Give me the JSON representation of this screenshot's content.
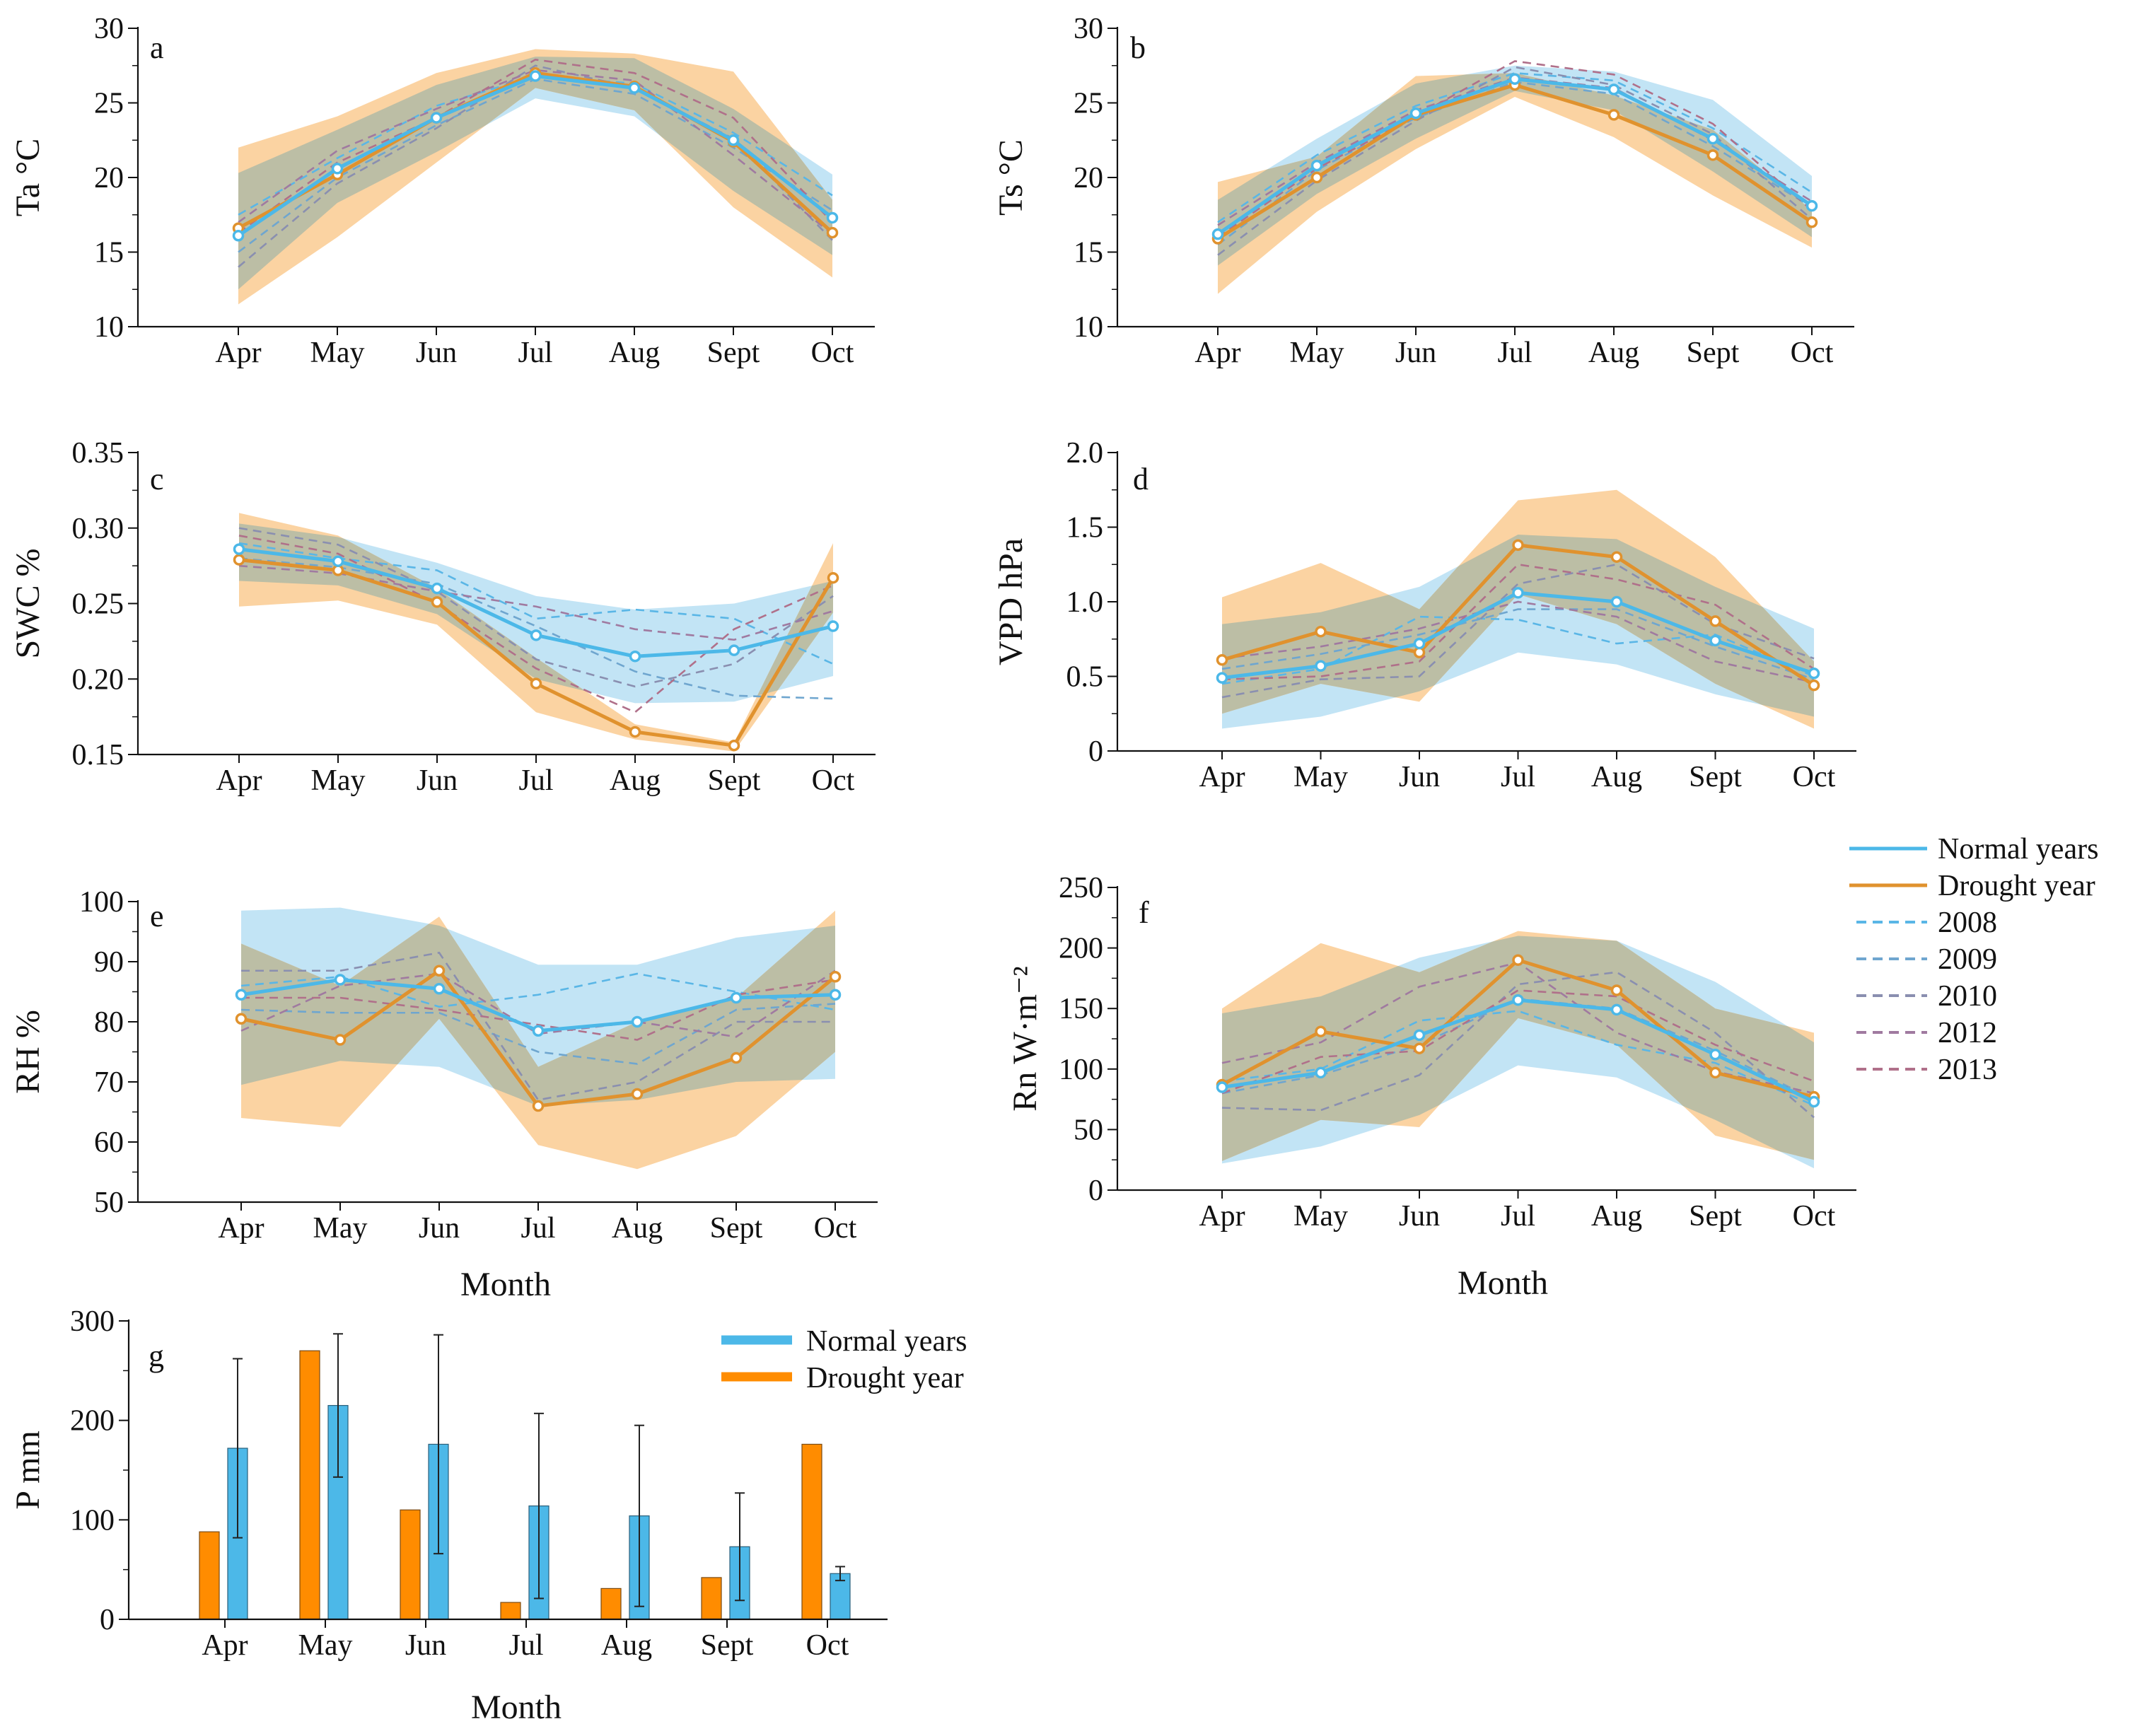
{
  "figure": {
    "months": [
      "Apr",
      "May",
      "Jun",
      "Jul",
      "Aug",
      "Sept",
      "Oct"
    ],
    "xlabel": "Month"
  },
  "colors": {
    "normal": "#4cb8e8",
    "normal_band": "#bfe3f4",
    "drought": "#e0922e",
    "drought_band": "#fbd3a2",
    "overlap": "#bcbea5",
    "y2008": "#5ab6e6",
    "y2009": "#6fa6cf",
    "y2010": "#8a8fb0",
    "y2012": "#a07aa0",
    "y2013": "#b0708a",
    "bar_normal": "#4cb8e8",
    "bar_drought": "#ff8c00"
  },
  "legend": {
    "normal": "Normal years",
    "drought": "Drought year",
    "y2008": "2008",
    "y2009": "2009",
    "y2010": "2010",
    "y2012": "2012",
    "y2013": "2013"
  },
  "bar_legend": {
    "normal": "Normal years",
    "drought": "Drought year"
  },
  "chart_data": [
    {
      "id": "a",
      "type": "line",
      "tag": "a",
      "ylabel": "Ta °C",
      "categories": [
        "Apr",
        "May",
        "Jun",
        "Jul",
        "Aug",
        "Sept",
        "Oct"
      ],
      "ylim": [
        10,
        30
      ],
      "yticks": [
        10,
        15,
        20,
        25,
        30
      ],
      "ytick_labels": [
        "10",
        "15",
        "20",
        "25",
        "30"
      ],
      "normal_band": {
        "upper": [
          20.3,
          23.2,
          26.2,
          28.1,
          28.0,
          24.6,
          20.2
        ],
        "lower": [
          12.5,
          18.3,
          21.7,
          25.3,
          24.1,
          19.1,
          14.8
        ]
      },
      "drought_band": {
        "upper": [
          22.0,
          24.1,
          27.0,
          28.6,
          28.3,
          27.1,
          18.5
        ],
        "lower": [
          11.5,
          16.0,
          21.0,
          26.0,
          24.5,
          18.0,
          13.3
        ]
      },
      "series": [
        {
          "name": "Normal years",
          "values": [
            16.1,
            20.6,
            24.0,
            26.8,
            26.0,
            22.5,
            17.3
          ]
        },
        {
          "name": "Drought year",
          "values": [
            16.6,
            20.2,
            24.0,
            27.0,
            26.1,
            22.4,
            16.3
          ]
        },
        {
          "name": "2008",
          "values": [
            17.5,
            21.3,
            24.8,
            26.8,
            26.3,
            23.0,
            18.8
          ]
        },
        {
          "name": "2009",
          "values": [
            15.0,
            20.0,
            23.5,
            26.6,
            25.6,
            22.0,
            17.8
          ]
        },
        {
          "name": "2010",
          "values": [
            14.0,
            19.6,
            23.3,
            27.5,
            26.0,
            22.6,
            15.8
          ]
        },
        {
          "name": "2012",
          "values": [
            17.0,
            21.8,
            24.6,
            27.2,
            26.5,
            21.5,
            16.2
          ]
        },
        {
          "name": "2013",
          "values": [
            16.3,
            21.0,
            24.0,
            27.9,
            27.0,
            24.0,
            17.0
          ]
        }
      ]
    },
    {
      "id": "b",
      "type": "line",
      "tag": "b",
      "ylabel": "Ts °C",
      "categories": [
        "Apr",
        "May",
        "Jun",
        "Jul",
        "Aug",
        "Sept",
        "Oct"
      ],
      "ylim": [
        10,
        30
      ],
      "yticks": [
        10,
        15,
        20,
        25,
        30
      ],
      "ytick_labels": [
        "10",
        "15",
        "20",
        "25",
        "30"
      ],
      "normal_band": {
        "upper": [
          18.5,
          22.6,
          26.3,
          27.5,
          27.1,
          25.2,
          20.1
        ],
        "lower": [
          14.1,
          18.9,
          22.6,
          25.8,
          24.5,
          20.4,
          16.0
        ]
      },
      "drought_band": {
        "upper": [
          19.7,
          21.4,
          26.8,
          27.0,
          25.5,
          23.2,
          17.8
        ],
        "lower": [
          12.2,
          17.7,
          21.9,
          25.4,
          22.7,
          18.8,
          15.3
        ]
      },
      "series": [
        {
          "name": "Normal years",
          "values": [
            16.2,
            20.8,
            24.3,
            26.6,
            25.9,
            22.6,
            18.1
          ]
        },
        {
          "name": "Drought year",
          "values": [
            15.9,
            20.0,
            24.2,
            26.2,
            24.2,
            21.5,
            17.0
          ]
        },
        {
          "name": "2008",
          "values": [
            17.0,
            21.5,
            24.8,
            27.0,
            26.5,
            23.3,
            19.0
          ]
        },
        {
          "name": "2009",
          "values": [
            15.5,
            20.5,
            24.0,
            26.4,
            25.6,
            22.1,
            18.0
          ]
        },
        {
          "name": "2010",
          "values": [
            14.8,
            19.8,
            23.8,
            27.4,
            26.2,
            22.9,
            17.2
          ]
        },
        {
          "name": "2012",
          "values": [
            16.8,
            21.0,
            24.5,
            26.7,
            26.0,
            22.5,
            18.4
          ]
        },
        {
          "name": "2013",
          "values": [
            16.0,
            20.6,
            24.1,
            27.8,
            26.9,
            23.6,
            17.8
          ]
        }
      ]
    },
    {
      "id": "c",
      "type": "line",
      "tag": "c",
      "ylabel": "SWC %",
      "categories": [
        "Apr",
        "May",
        "Jun",
        "Jul",
        "Aug",
        "Sept",
        "Oct"
      ],
      "ylim": [
        0.15,
        0.35
      ],
      "yticks": [
        0.15,
        0.2,
        0.25,
        0.3,
        0.35
      ],
      "ytick_labels": [
        "0.15",
        "0.20",
        "0.25",
        "0.30",
        "0.35"
      ],
      "normal_band": {
        "upper": [
          0.303,
          0.294,
          0.277,
          0.255,
          0.246,
          0.25,
          0.265
        ],
        "lower": [
          0.265,
          0.262,
          0.243,
          0.2,
          0.184,
          0.185,
          0.202
        ]
      },
      "drought_band": {
        "upper": [
          0.31,
          0.295,
          0.26,
          0.214,
          0.17,
          0.158,
          0.29
        ],
        "lower": [
          0.248,
          0.252,
          0.236,
          0.178,
          0.16,
          0.152,
          0.244
        ]
      },
      "series": [
        {
          "name": "Normal years",
          "values": [
            0.286,
            0.278,
            0.26,
            0.229,
            0.215,
            0.219,
            0.235
          ]
        },
        {
          "name": "Drought year",
          "values": [
            0.279,
            0.272,
            0.251,
            0.197,
            0.165,
            0.156,
            0.267
          ]
        },
        {
          "name": "2008",
          "values": [
            0.29,
            0.28,
            0.272,
            0.24,
            0.246,
            0.24,
            0.21
          ]
        },
        {
          "name": "2009",
          "values": [
            0.28,
            0.274,
            0.263,
            0.235,
            0.205,
            0.189,
            0.187
          ]
        },
        {
          "name": "2010",
          "values": [
            0.3,
            0.289,
            0.258,
            0.213,
            0.195,
            0.21,
            0.255
          ]
        },
        {
          "name": "2012",
          "values": [
            0.275,
            0.27,
            0.258,
            0.248,
            0.233,
            0.226,
            0.245
          ]
        },
        {
          "name": "2013",
          "values": [
            0.295,
            0.283,
            0.25,
            0.207,
            0.178,
            0.233,
            0.262
          ]
        }
      ]
    },
    {
      "id": "d",
      "type": "line",
      "tag": "d",
      "ylabel": "VPD hPa",
      "categories": [
        "Apr",
        "May",
        "Jun",
        "Jul",
        "Aug",
        "Sept",
        "Oct"
      ],
      "ylim": [
        0,
        2.0
      ],
      "yticks": [
        0,
        0.5,
        1.0,
        1.5,
        2.0
      ],
      "ytick_labels": [
        "0",
        "0.5",
        "1.0",
        "1.5",
        "2.0"
      ],
      "normal_band": {
        "upper": [
          0.85,
          0.93,
          1.1,
          1.45,
          1.42,
          1.1,
          0.82
        ],
        "lower": [
          0.15,
          0.23,
          0.4,
          0.66,
          0.58,
          0.38,
          0.23
        ]
      },
      "drought_band": {
        "upper": [
          1.03,
          1.26,
          0.95,
          1.68,
          1.75,
          1.3,
          0.6
        ],
        "lower": [
          0.25,
          0.45,
          0.33,
          1.05,
          0.85,
          0.45,
          0.15
        ]
      },
      "series": [
        {
          "name": "Normal years",
          "values": [
            0.49,
            0.57,
            0.72,
            1.06,
            1.0,
            0.74,
            0.52
          ]
        },
        {
          "name": "Drought year",
          "values": [
            0.61,
            0.8,
            0.66,
            1.38,
            1.3,
            0.87,
            0.44
          ]
        },
        {
          "name": "2008",
          "values": [
            0.45,
            0.55,
            0.9,
            0.88,
            0.72,
            0.78,
            0.5
          ]
        },
        {
          "name": "2009",
          "values": [
            0.55,
            0.65,
            0.78,
            0.95,
            0.95,
            0.7,
            0.48
          ]
        },
        {
          "name": "2010",
          "values": [
            0.36,
            0.48,
            0.5,
            1.12,
            1.25,
            0.85,
            0.62
          ]
        },
        {
          "name": "2012",
          "values": [
            0.62,
            0.7,
            0.82,
            1.0,
            0.9,
            0.6,
            0.46
          ]
        },
        {
          "name": "2013",
          "values": [
            0.48,
            0.5,
            0.6,
            1.25,
            1.15,
            0.98,
            0.55
          ]
        }
      ]
    },
    {
      "id": "e",
      "type": "line",
      "tag": "e",
      "ylabel": "RH %",
      "categories": [
        "Apr",
        "May",
        "Jun",
        "Jul",
        "Aug",
        "Sept",
        "Oct"
      ],
      "ylim": [
        50,
        100
      ],
      "yticks": [
        50,
        60,
        70,
        80,
        90,
        100
      ],
      "ytick_labels": [
        "50",
        "60",
        "70",
        "80",
        "90",
        "100"
      ],
      "normal_band": {
        "upper": [
          98.5,
          99.0,
          96.0,
          89.5,
          89.5,
          94.0,
          96.0
        ],
        "lower": [
          69.5,
          73.5,
          72.5,
          66.0,
          67.0,
          70.0,
          70.5
        ]
      },
      "drought_band": {
        "upper": [
          93.0,
          86.0,
          97.5,
          72.5,
          80.0,
          84.0,
          98.5
        ],
        "lower": [
          64.0,
          62.5,
          80.5,
          59.5,
          55.5,
          61.0,
          75.0
        ]
      },
      "series": [
        {
          "name": "Normal years",
          "values": [
            84.5,
            87.0,
            85.5,
            78.5,
            80.0,
            84.0,
            84.5
          ]
        },
        {
          "name": "Drought year",
          "values": [
            80.5,
            77.0,
            88.5,
            66.0,
            68.0,
            74.0,
            87.5
          ]
        },
        {
          "name": "2008",
          "values": [
            86.0,
            87.5,
            82.5,
            84.5,
            88.0,
            85.0,
            82.0
          ]
        },
        {
          "name": "2009",
          "values": [
            82.0,
            81.5,
            81.5,
            75.0,
            73.0,
            82.0,
            83.0
          ]
        },
        {
          "name": "2010",
          "values": [
            88.5,
            88.5,
            91.5,
            67.0,
            70.0,
            80.0,
            80.0
          ]
        },
        {
          "name": "2012",
          "values": [
            78.5,
            86.0,
            88.0,
            78.0,
            80.0,
            77.5,
            88.5
          ]
        },
        {
          "name": "2013",
          "values": [
            84.0,
            84.0,
            82.0,
            79.5,
            77.0,
            84.5,
            87.0
          ]
        }
      ]
    },
    {
      "id": "f",
      "type": "line",
      "tag": "f",
      "ylabel": "Rn W·m⁻²",
      "categories": [
        "Apr",
        "May",
        "Jun",
        "Jul",
        "Aug",
        "Sept",
        "Oct"
      ],
      "ylim": [
        0,
        250
      ],
      "yticks": [
        0,
        50,
        100,
        150,
        200,
        250
      ],
      "ytick_labels": [
        "0",
        "50",
        "100",
        "150",
        "200",
        "250"
      ],
      "normal_band": {
        "upper": [
          146,
          160,
          192,
          210,
          206,
          172,
          122
        ],
        "lower": [
          22,
          36,
          62,
          103,
          93,
          58,
          18
        ]
      },
      "drought_band": {
        "upper": [
          150,
          204,
          180,
          214,
          206,
          150,
          130
        ],
        "lower": [
          24,
          58,
          52,
          142,
          120,
          45,
          25
        ]
      },
      "series": [
        {
          "name": "Normal years",
          "values": [
            85,
            97,
            128,
            157,
            149,
            112,
            73
          ]
        },
        {
          "name": "Drought year",
          "values": [
            87,
            131,
            117,
            190,
            165,
            97,
            77
          ]
        },
        {
          "name": "2008",
          "values": [
            90,
            100,
            140,
            148,
            120,
            105,
            70
          ]
        },
        {
          "name": "2009",
          "values": [
            80,
            95,
            120,
            158,
            150,
            115,
            75
          ]
        },
        {
          "name": "2010",
          "values": [
            68,
            66,
            95,
            170,
            180,
            130,
            60
          ]
        },
        {
          "name": "2012",
          "values": [
            105,
            122,
            168,
            188,
            130,
            98,
            80
          ]
        },
        {
          "name": "2013",
          "values": [
            80,
            110,
            115,
            165,
            160,
            120,
            90
          ]
        }
      ]
    },
    {
      "id": "g",
      "type": "bar",
      "tag": "g",
      "ylabel": "P mm",
      "xlabel": "Month",
      "categories": [
        "Apr",
        "May",
        "Jun",
        "Jul",
        "Aug",
        "Sept",
        "Oct"
      ],
      "ylim": [
        0,
        300
      ],
      "yticks": [
        0,
        100,
        200,
        300
      ],
      "ytick_labels": [
        "0",
        "100",
        "200",
        "300"
      ],
      "series": [
        {
          "name": "Drought year",
          "values": [
            88,
            270,
            110,
            17,
            31,
            42,
            176
          ]
        },
        {
          "name": "Normal years",
          "values": [
            172,
            215,
            176,
            114,
            104,
            73,
            46
          ],
          "error": [
            90,
            72,
            110,
            93,
            91,
            54,
            7
          ]
        }
      ]
    }
  ]
}
